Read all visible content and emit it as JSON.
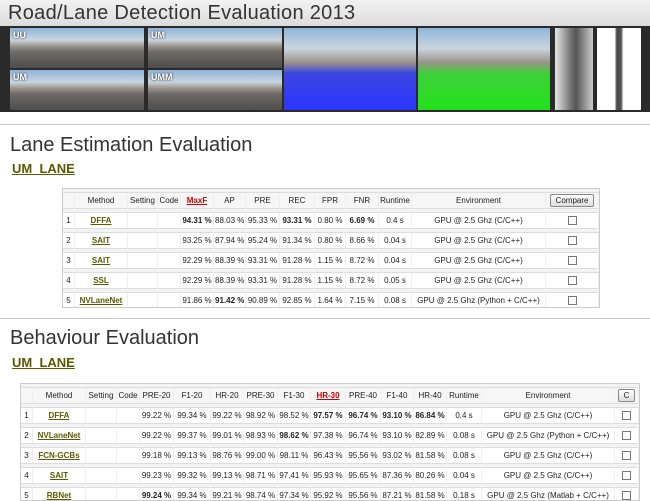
{
  "header": {
    "title": "Road/Lane Detection Evaluation 2013",
    "image_labels": [
      "UU",
      "UM",
      "UM",
      "UMM"
    ]
  },
  "sections": [
    {
      "title": "Lane Estimation Evaluation",
      "subtitle": "UM_LANE",
      "table": {
        "headers": [
          "Method",
          "Setting",
          "Code",
          "MaxF",
          "AP",
          "PRE",
          "REC",
          "FPR",
          "FNR",
          "Runtime",
          "Environment"
        ],
        "compare_button": "Compare",
        "rows": [
          {
            "rank": 1,
            "method": "DFFA",
            "values": [
              "94.31 %",
              "88.03 %",
              "95.33 %",
              "93.31 %",
              "0.80 %",
              "6.69 %"
            ],
            "runtime": "0.4 s",
            "environment": "GPU @ 2.5 Ghz (C/C++)"
          },
          {
            "rank": 2,
            "method": "SAIT",
            "values": [
              "93.25 %",
              "87.94 %",
              "95.24 %",
              "91.34 %",
              "0.80 %",
              "8.66 %"
            ],
            "runtime": "0.04 s",
            "environment": "GPU @ 2.5 Ghz (C/C++)"
          },
          {
            "rank": 3,
            "method": "SAIT",
            "values": [
              "92.29 %",
              "88.39 %",
              "93.31 %",
              "91.28 %",
              "1.15 %",
              "8.72 %"
            ],
            "runtime": "0.04 s",
            "environment": "GPU @ 2.5 Ghz (C/C++)"
          },
          {
            "rank": 4,
            "method": "SSL",
            "values": [
              "92.29 %",
              "88.39 %",
              "93.31 %",
              "91.28 %",
              "1.15 %",
              "8.72 %"
            ],
            "runtime": "0.05 s",
            "environment": "GPU @ 2.5 Ghz (C/C++)"
          },
          {
            "rank": 5,
            "method": "NVLaneNet",
            "values": [
              "91.86 %",
              "91.42 %",
              "90.89 %",
              "92.85 %",
              "1.64 %",
              "7.15 %"
            ],
            "runtime": "0.08 s",
            "environment": "GPU @ 2.5 Ghz (Python + C/C++)"
          }
        ]
      }
    },
    {
      "title": "Behaviour Evaluation",
      "subtitle": "UM_LANE",
      "table": {
        "headers": [
          "Method",
          "Setting",
          "Code",
          "PRE-20",
          "F1-20",
          "HR-20",
          "PRE-30",
          "F1-30",
          "HR-30",
          "PRE-40",
          "F1-40",
          "HR-40",
          "Runtime",
          "Environment"
        ],
        "compare_button": "C",
        "rows": [
          {
            "rank": 1,
            "method": "DFFA",
            "values": [
              "99.22 %",
              "99.34 %",
              "99.22 %",
              "98.92 %",
              "98.52 %",
              "97.57 %",
              "96.74 %",
              "93.10 %",
              "86.84 %"
            ],
            "runtime": "0.4 s",
            "environment": "GPU @ 2.5 Ghz (C/C++)"
          },
          {
            "rank": 2,
            "method": "NVLaneNet",
            "values": [
              "99.22 %",
              "99.37 %",
              "99.01 %",
              "98.93 %",
              "98.62 %",
              "97.38 %",
              "96.74 %",
              "93.10 %",
              "82.89 %"
            ],
            "runtime": "0.08 s",
            "environment": "GPU @ 2.5 Ghz (Python + C/C++)"
          },
          {
            "rank": 3,
            "method": "FCN-GCBs",
            "values": [
              "99.18 %",
              "99.13 %",
              "98.76 %",
              "99.00 %",
              "98.11 %",
              "96.43 %",
              "95.56 %",
              "93.02 %",
              "81.58 %"
            ],
            "runtime": "0.08 s",
            "environment": "GPU @ 2.5 Ghz (C/C++)"
          },
          {
            "rank": 4,
            "method": "SAIT",
            "values": [
              "99.23 %",
              "99.32 %",
              "99.13 %",
              "98.71 %",
              "97.41 %",
              "95.93 %",
              "95.65 %",
              "87.36 %",
              "80.26 %"
            ],
            "runtime": "0.04 s",
            "environment": "GPU @ 2.5 Ghz (C/C++)"
          },
          {
            "rank": 5,
            "method": "RBNet",
            "values": [
              "99.24 %",
              "99.34 %",
              "99.21 %",
              "98.74 %",
              "97.34 %",
              "95.92 %",
              "95.56 %",
              "87.21 %",
              "81.58 %"
            ],
            "runtime": "0.18 s",
            "environment": "GPU @ 2.5 Ghz (Matlab + C/C++)"
          }
        ]
      }
    }
  ]
}
